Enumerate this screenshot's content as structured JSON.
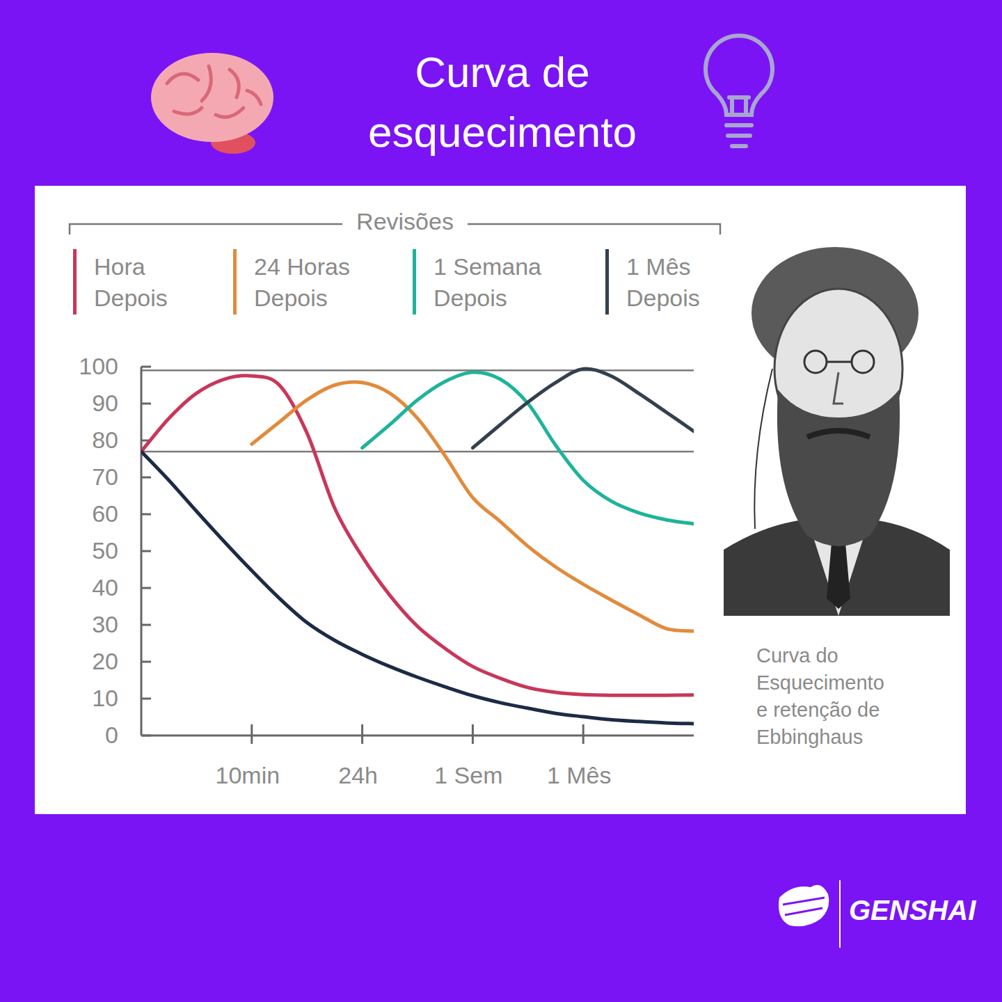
{
  "chart_data": {
    "type": "line",
    "title": "Curva de esquecimento",
    "legend_title": "Revisões",
    "legend": "top",
    "grid": false,
    "annotations": [
      "Curva do Esquecimento e retenção de Ebbinghaus"
    ],
    "brand": "GENSHAI",
    "x": [
      0,
      0.25,
      0.5,
      0.75,
      1,
      1.25,
      1.5,
      1.75,
      2,
      2.25,
      2.5,
      2.75,
      3,
      3.25,
      3.5,
      3.75,
      4,
      4.25,
      4.5,
      4.75,
      5
    ],
    "xlim": [
      0,
      5
    ],
    "xticks": [
      {
        "value": 1,
        "label": "10min"
      },
      {
        "value": 2,
        "label": "24h"
      },
      {
        "value": 3,
        "label": "1 Sem"
      },
      {
        "value": 4,
        "label": "1 Mês"
      }
    ],
    "ylim": [
      0,
      100
    ],
    "yticks": [
      0,
      10,
      20,
      30,
      40,
      50,
      60,
      70,
      80,
      90,
      100
    ],
    "hlines": [
      99,
      77
    ],
    "series": [
      {
        "name": "Hora Depois",
        "color": "#c8375a",
        "values": [
          77,
          86,
          92.8,
          96.6,
          97.5,
          95,
          82,
          61.7,
          48.5,
          38,
          29.6,
          23.6,
          18.7,
          15.5,
          13,
          11.7,
          11.1,
          10.9,
          10.9,
          10.9,
          11
        ]
      },
      {
        "name": "24 Horas Depois",
        "color": "#e28a3c",
        "values": [
          null,
          null,
          null,
          null,
          79,
          85,
          91,
          95,
          95.7,
          92.8,
          86,
          75.8,
          64.5,
          58,
          51.3,
          45.7,
          41,
          36.8,
          32.8,
          29,
          28.3
        ]
      },
      {
        "name": "1 Semana Depois",
        "color": "#1fb39a",
        "values": [
          null,
          null,
          null,
          null,
          null,
          null,
          null,
          null,
          78,
          84.3,
          91,
          96,
          98.5,
          96.6,
          90,
          78.7,
          69.2,
          63.6,
          60.4,
          58.5,
          57.4
        ]
      },
      {
        "name": "1 Mês Depois",
        "color": "#34404f",
        "values": [
          null,
          null,
          null,
          null,
          null,
          null,
          null,
          null,
          null,
          null,
          null,
          null,
          78,
          84.3,
          90.4,
          95.7,
          99.4,
          97.5,
          92.8,
          87.7,
          82.5
        ]
      },
      {
        "color": "#1c2b45",
        "values": [
          77,
          69.2,
          60.8,
          52.6,
          44.7,
          37.2,
          30.6,
          25.8,
          22,
          18.7,
          15.8,
          13.2,
          10.8,
          8.9,
          7.4,
          6,
          5.1,
          4.3,
          3.8,
          3.4,
          3.2
        ]
      }
    ]
  }
}
